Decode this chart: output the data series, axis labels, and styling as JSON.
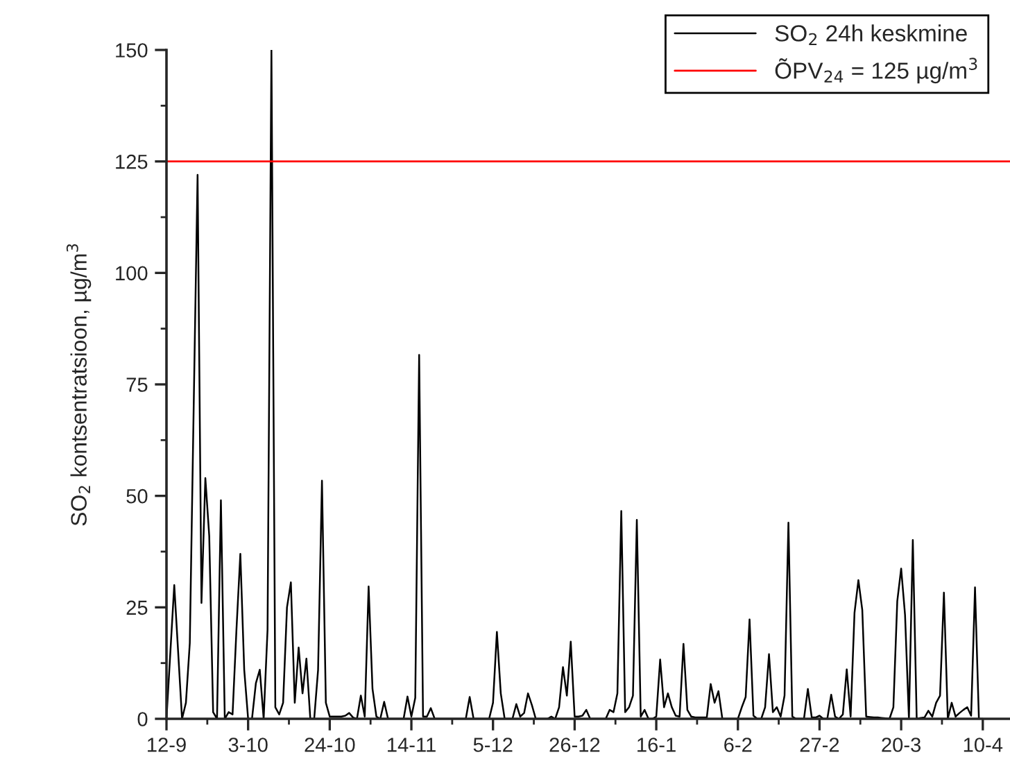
{
  "chart_data": {
    "type": "line",
    "ylabel": "SO$_{2}$ kontsentratsioon, µg/m$^{3}$",
    "categories": [
      "12-9",
      null,
      null,
      null,
      null,
      null,
      null,
      null,
      null,
      null,
      null,
      null,
      null,
      null,
      null,
      null,
      null,
      null,
      null,
      null,
      null,
      "3-10",
      null,
      null,
      null,
      null,
      null,
      null,
      null,
      null,
      null,
      null,
      null,
      null,
      null,
      null,
      null,
      null,
      null,
      null,
      null,
      null,
      "24-10",
      null,
      null,
      null,
      null,
      null,
      null,
      null,
      null,
      null,
      null,
      null,
      null,
      null,
      null,
      null,
      null,
      null,
      null,
      null,
      null,
      "14-11",
      null,
      null,
      null,
      null,
      null,
      null,
      null,
      null,
      null,
      null,
      null,
      null,
      null,
      null,
      null,
      null,
      null,
      null,
      null,
      null,
      "5-12",
      null,
      null,
      null,
      null,
      null,
      null,
      null,
      null,
      null,
      null,
      null,
      null,
      null,
      null,
      null,
      null,
      null,
      null,
      null,
      null,
      "26-12",
      null,
      null,
      null,
      null,
      null,
      null,
      null,
      null,
      null,
      null,
      null,
      null,
      null,
      null,
      null,
      null,
      null,
      null,
      null,
      null,
      "16-1",
      null,
      null,
      null,
      null,
      null,
      null,
      null,
      null,
      null,
      null,
      null,
      null,
      null,
      null,
      null,
      null,
      null,
      null,
      null,
      null,
      "6-2",
      null,
      null,
      null,
      null,
      null,
      null,
      null,
      null,
      null,
      null,
      null,
      null,
      null,
      null,
      null,
      null,
      null,
      null,
      null,
      null,
      "27-2",
      null,
      null,
      null,
      null,
      null,
      null,
      null,
      null,
      null,
      null,
      null,
      null,
      null,
      null,
      null,
      null,
      null,
      null,
      null,
      null,
      "20-3",
      null,
      null,
      null,
      null,
      null,
      null,
      null,
      null,
      null,
      null,
      null,
      null,
      null,
      null,
      null,
      null,
      null,
      null,
      null,
      null,
      "10-4",
      null,
      null,
      null,
      null,
      null,
      null,
      null
    ],
    "series": [
      {
        "name": "SO$_{2}$ 24h keskmine",
        "color": "#000000",
        "values": [
          0,
          15,
          30,
          15,
          0,
          3.6,
          17,
          70,
          122,
          26,
          54,
          41,
          1.5,
          0,
          49,
          0,
          1.5,
          1,
          20,
          37,
          11,
          0,
          0,
          8,
          11,
          0,
          20,
          150,
          2.6,
          1,
          3.6,
          25,
          30.6,
          3.6,
          16,
          5.7,
          13.5,
          0,
          0,
          11,
          53.4,
          3.6,
          0.5,
          0.5,
          0.5,
          0.5,
          0.7,
          1.3,
          0.3,
          0,
          5.2,
          0.5,
          29.7,
          6.7,
          0.5,
          0,
          3.8,
          0,
          0,
          0,
          0,
          0,
          5,
          0.5,
          4.7,
          81.6,
          0.5,
          0.5,
          2.4,
          0,
          0,
          0,
          0,
          0,
          0,
          0,
          0,
          0,
          4.9,
          0,
          0,
          0,
          0,
          0,
          3.6,
          19.5,
          5.7,
          0,
          0,
          0,
          3.3,
          0.5,
          1.3,
          5.7,
          3.1,
          0,
          0,
          0,
          0,
          0.5,
          0,
          2.6,
          11.6,
          5.2,
          17.3,
          0.5,
          0.5,
          0.7,
          2,
          0,
          0,
          0,
          0,
          0,
          2,
          1.5,
          5.7,
          46.6,
          1.5,
          2.6,
          5.2,
          44.6,
          0.5,
          2,
          0,
          0,
          0.5,
          13.3,
          2.6,
          5.7,
          2.6,
          0.7,
          0.5,
          16.8,
          2,
          0.5,
          0.3,
          0.3,
          0.3,
          0.3,
          7.8,
          3.6,
          6.2,
          0,
          0,
          0,
          0,
          0,
          2.6,
          4.9,
          22.3,
          0.7,
          0,
          0,
          2.6,
          14.5,
          1.5,
          2.6,
          0.5,
          5.2,
          44,
          0.5,
          0,
          0,
          0,
          6.7,
          0.3,
          0.3,
          0.7,
          0,
          0,
          5.4,
          0.5,
          0,
          1,
          11.1,
          0.5,
          23.8,
          31.1,
          24.4,
          0.5,
          0.4,
          0.3,
          0.3,
          0.2,
          0.1,
          0,
          2.6,
          26.4,
          33.7,
          23.3,
          0,
          40.1,
          0,
          0.2,
          0.3,
          1.8,
          0.5,
          3.6,
          5.2,
          28.3,
          0,
          3.6,
          0.5,
          1.3,
          2,
          2.6,
          0.7,
          29.5,
          0,
          0,
          null,
          null,
          null,
          null,
          null,
          null,
          null
        ]
      }
    ],
    "ref_lines": [
      {
        "axis": "y",
        "value": 125,
        "label": "ÕPV$_{24}$ = 125 µg/m$^{3}$",
        "color": "#ff0000"
      }
    ],
    "ylim": [
      0,
      150
    ],
    "yticks": [
      0,
      25,
      50,
      75,
      100,
      125,
      150
    ],
    "legend": "top right",
    "grid": false
  }
}
